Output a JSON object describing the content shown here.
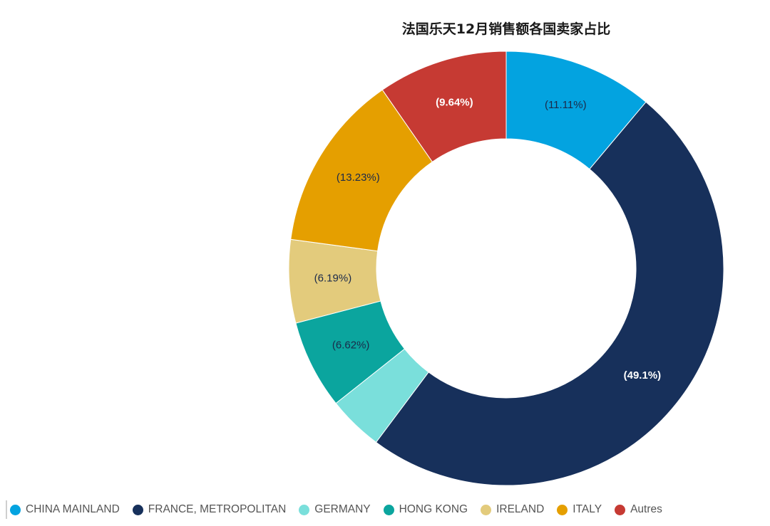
{
  "chart_data": {
    "type": "pie",
    "variant": "donut",
    "title": "法国乐天12月销售额各国卖家占比",
    "legend_position": "bottom",
    "slices": [
      {
        "name": "CHINA MAINLAND",
        "value": 11.11,
        "label": "(11.11%)",
        "color": "#03A3E0",
        "label_color": "#1b2a4a"
      },
      {
        "name": "FRANCE, METROPOLITAN",
        "value": 49.1,
        "label": "(49.1%)",
        "color": "#17305B",
        "label_color": "#ffffff"
      },
      {
        "name": "GERMANY",
        "value": 4.11,
        "label": "",
        "color": "#7ADFDB",
        "label_color": "#1b2a4a"
      },
      {
        "name": "HONG KONG",
        "value": 6.62,
        "label": "(6.62%)",
        "color": "#0BA59E",
        "label_color": "#1b2a4a"
      },
      {
        "name": "IRELAND",
        "value": 6.19,
        "label": "(6.19%)",
        "color": "#E3CB7C",
        "label_color": "#1b2a4a"
      },
      {
        "name": "ITALY",
        "value": 13.23,
        "label": "(13.23%)",
        "color": "#E59F00",
        "label_color": "#1b2a4a"
      },
      {
        "name": "Autres",
        "value": 9.64,
        "label": "(9.64%)",
        "color": "#C63A33",
        "label_color": "#ffffff"
      }
    ]
  }
}
